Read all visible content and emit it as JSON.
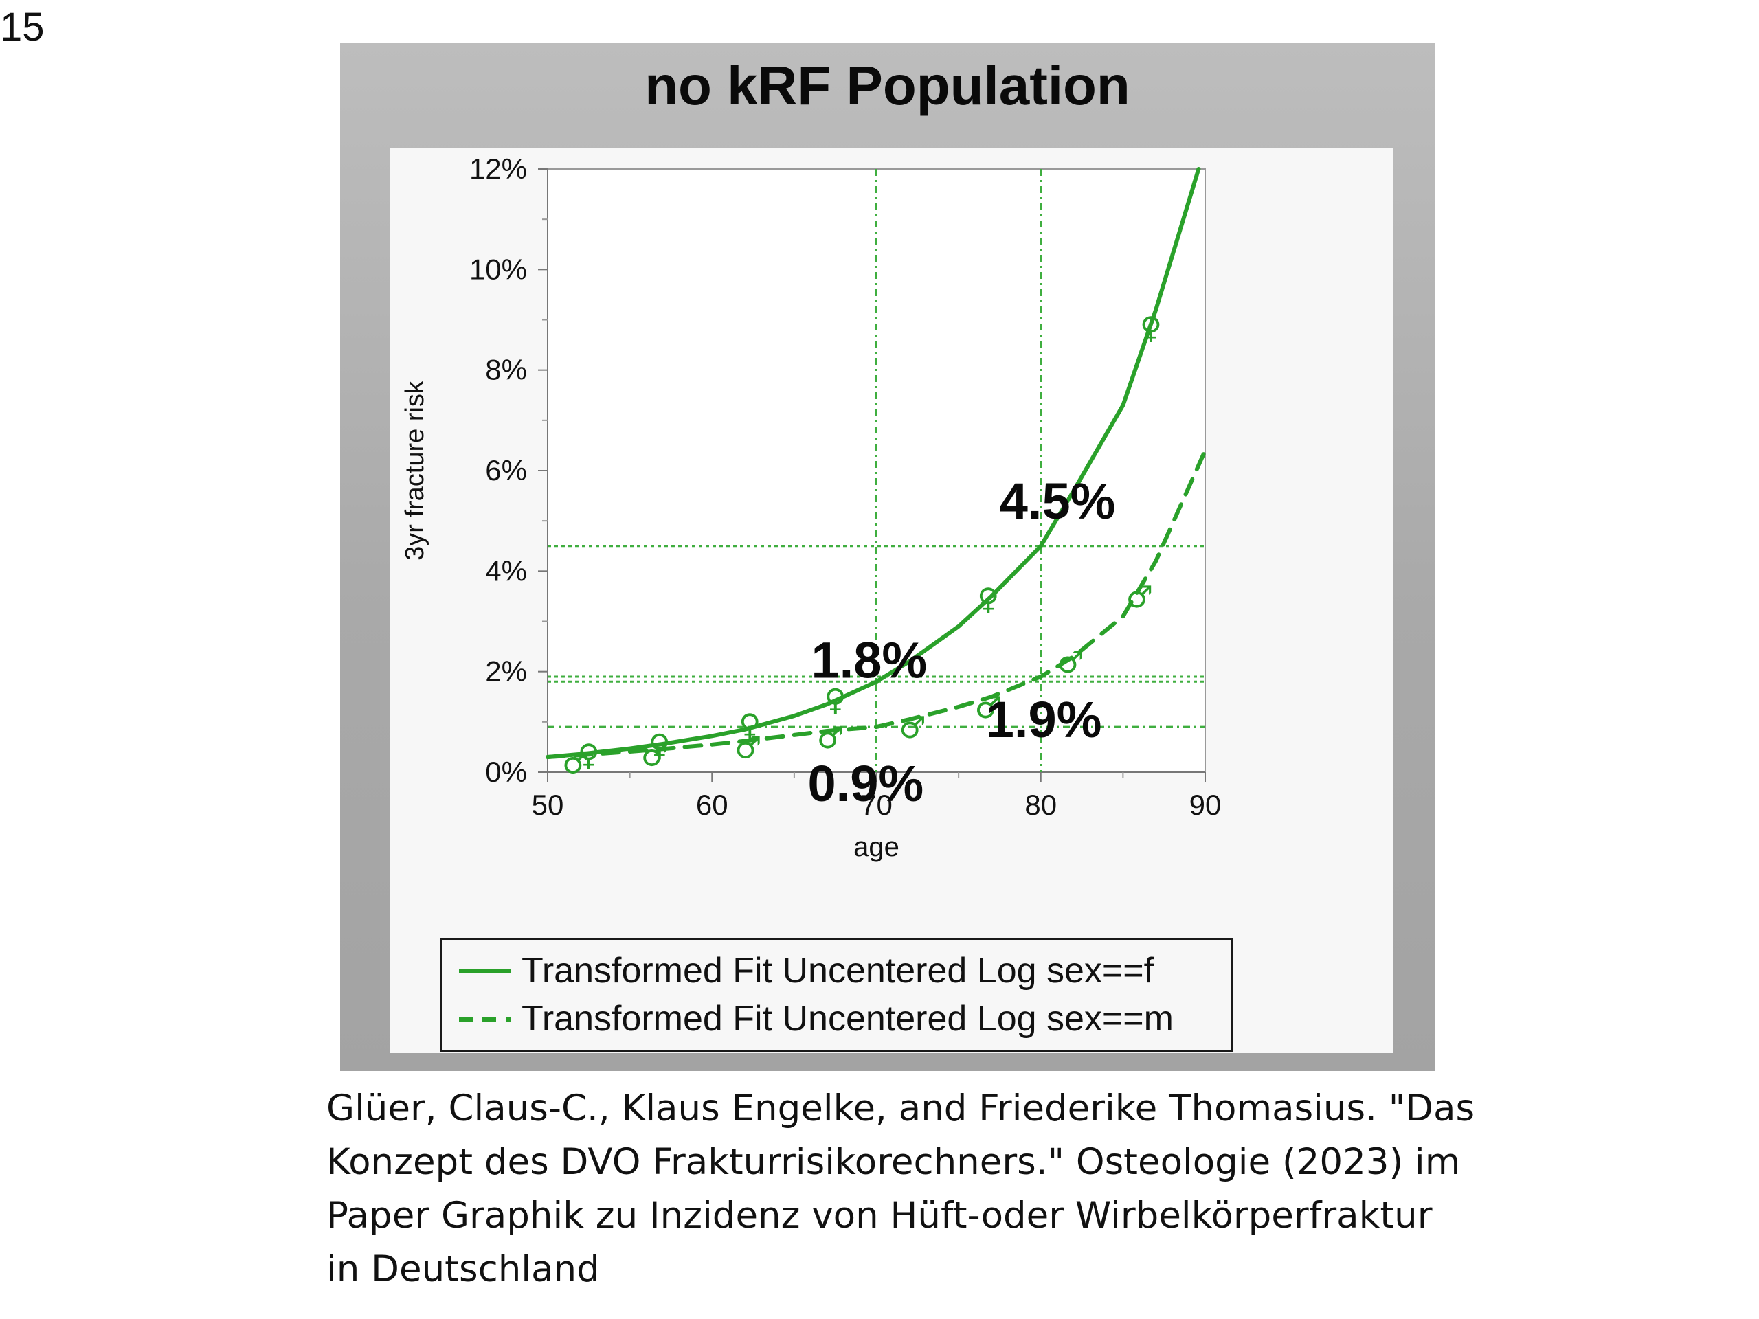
{
  "slide_number": "15",
  "chart_data": {
    "type": "line",
    "title": "no kRF Population",
    "xlabel": "age",
    "ylabel": "3yr fracture risk",
    "xlim": [
      50,
      90
    ],
    "ylim": [
      0,
      12
    ],
    "x_ticks": [
      "50",
      "60",
      "70",
      "80",
      "90"
    ],
    "y_ticks": [
      "0%",
      "2%",
      "4%",
      "6%",
      "8%",
      "10%",
      "12%"
    ],
    "grid": false,
    "legend_position": "bottom-left",
    "series": [
      {
        "name": "Transformed Fit Uncentered Log sex==f",
        "style": "solid",
        "x": [
          50,
          52,
          55,
          57,
          60,
          62,
          65,
          67,
          70,
          72,
          75,
          77,
          80,
          82,
          85,
          87,
          89.6
        ],
        "y": [
          0.3,
          0.36,
          0.47,
          0.56,
          0.72,
          0.85,
          1.12,
          1.35,
          1.8,
          2.2,
          2.9,
          3.5,
          4.5,
          5.6,
          7.3,
          9.2,
          12.0
        ],
        "observed": {
          "symbol": "♀",
          "x": [
            52.5,
            56.8,
            62.3,
            67.5,
            76.8,
            86.7
          ],
          "y": [
            0.35,
            0.55,
            0.95,
            1.45,
            3.45,
            8.85
          ]
        }
      },
      {
        "name": "Transformed Fit Uncentered Log sex==m",
        "style": "dashed",
        "x": [
          50,
          52,
          55,
          57,
          60,
          62,
          65,
          67,
          70,
          72,
          75,
          77,
          80,
          82,
          85,
          87,
          90
        ],
        "y": [
          0.3,
          0.34,
          0.41,
          0.46,
          0.55,
          0.62,
          0.74,
          0.82,
          0.9,
          1.05,
          1.3,
          1.5,
          1.9,
          2.3,
          3.1,
          4.2,
          6.4
        ],
        "observed": {
          "symbol": "♂",
          "x": [
            51.7,
            56.5,
            62.2,
            67.2,
            72.2,
            76.8,
            81.8,
            86.0
          ],
          "y": [
            0.2,
            0.35,
            0.5,
            0.7,
            0.9,
            1.3,
            2.2,
            3.5
          ]
        }
      }
    ],
    "reference_lines": [
      {
        "orientation": "vertical",
        "x": 70,
        "style": "dash-dot"
      },
      {
        "orientation": "vertical",
        "x": 80,
        "style": "dash-dot"
      },
      {
        "orientation": "horizontal",
        "y": 4.5,
        "style": "dotted"
      },
      {
        "orientation": "horizontal",
        "y": 1.9,
        "style": "dotted"
      },
      {
        "orientation": "horizontal",
        "y": 1.8,
        "style": "dotted"
      },
      {
        "orientation": "horizontal",
        "y": 0.9,
        "style": "dash-dot"
      }
    ],
    "annotations": [
      {
        "text": "4.5%",
        "x": 80,
        "y": 4.5
      },
      {
        "text": "1.8%",
        "x": 70,
        "y": 1.8
      },
      {
        "text": "1.9%",
        "x": 80,
        "y": 1.9
      },
      {
        "text": "0.9%",
        "x": 70,
        "y": 0.9
      }
    ]
  },
  "colors": {
    "line": "#2aa12a",
    "reference": "#3fae3f",
    "frame_background": "#aaaaaa",
    "plot_background": "#f7f7f7"
  },
  "citation_lines": [
    "Glüer, Claus-C., Klaus Engelke, and Friederike Thomasius. \"Das",
    "Konzept des DVO Frakturrisikorechners.\" Osteologie (2023) im",
    "Paper Graphik zu Inzidenz von Hüft-oder Wirbelkörperfraktur",
    "in Deutschland"
  ]
}
